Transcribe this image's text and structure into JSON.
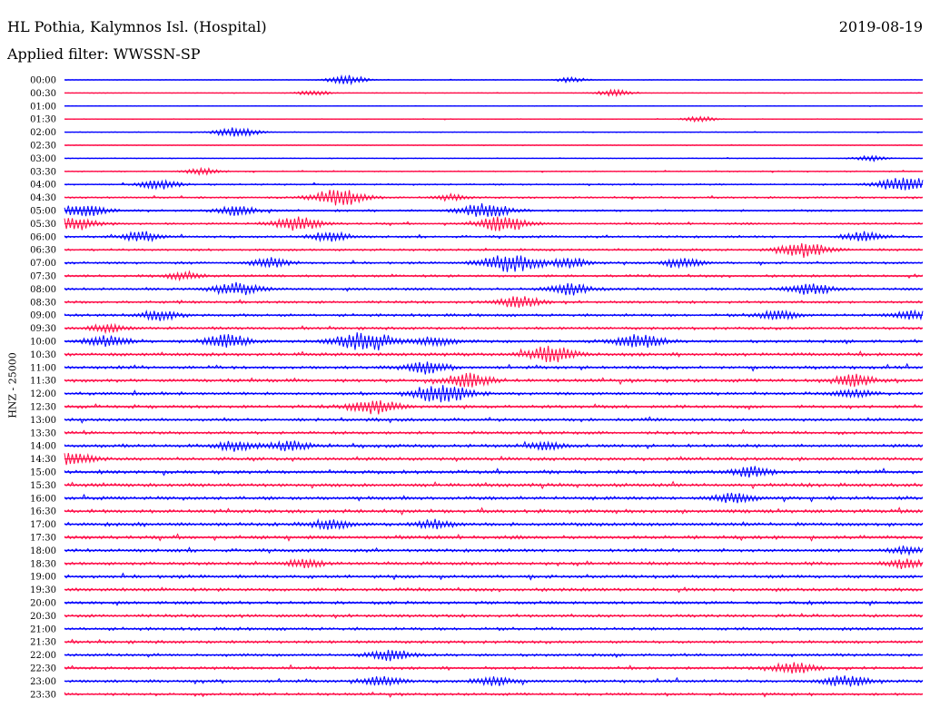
{
  "header": {
    "title": "HL Pothia, Kalymnos Isl. (Hospital)",
    "date": "2019-08-19",
    "filter": "Applied filter: WWSSN-SP"
  },
  "axis": {
    "ylabel": "HNZ - 25000"
  },
  "chart_data": {
    "type": "line",
    "ylabel": "HNZ - 25000",
    "row_labels": [
      "00:00",
      "00:30",
      "01:00",
      "01:30",
      "02:00",
      "02:30",
      "03:00",
      "03:30",
      "04:00",
      "04:30",
      "05:00",
      "05:30",
      "06:00",
      "06:30",
      "07:00",
      "07:30",
      "08:00",
      "08:30",
      "09:00",
      "09:30",
      "10:00",
      "10:30",
      "11:00",
      "11:30",
      "12:00",
      "12:30",
      "13:00",
      "13:30",
      "14:00",
      "14:30",
      "15:00",
      "15:30",
      "16:00",
      "16:30",
      "17:00",
      "17:30",
      "18:00",
      "18:30",
      "19:00",
      "19:30",
      "20:00",
      "20:30",
      "21:00",
      "21:30",
      "22:00",
      "22:30",
      "23:00",
      "23:30"
    ],
    "colors": [
      "#0000ff",
      "#ff0a46"
    ],
    "row_noise": [
      0.05,
      0.05,
      0.05,
      0.06,
      0.06,
      0.07,
      0.07,
      0.1,
      0.14,
      0.16,
      0.18,
      0.18,
      0.2,
      0.2,
      0.2,
      0.22,
      0.22,
      0.22,
      0.24,
      0.24,
      0.26,
      0.28,
      0.26,
      0.28,
      0.26,
      0.26,
      0.26,
      0.26,
      0.28,
      0.28,
      0.3,
      0.3,
      0.3,
      0.3,
      0.3,
      0.3,
      0.28,
      0.28,
      0.28,
      0.28,
      0.26,
      0.26,
      0.26,
      0.26,
      0.24,
      0.24,
      0.24,
      0.22
    ],
    "events": [
      {
        "row": 0,
        "t": 0.33,
        "amp": 1.0
      },
      {
        "row": 0,
        "t": 0.59,
        "amp": 0.6
      },
      {
        "row": 1,
        "t": 0.29,
        "amp": 0.6
      },
      {
        "row": 1,
        "t": 0.64,
        "amp": 0.7
      },
      {
        "row": 3,
        "t": 0.74,
        "amp": 0.6
      },
      {
        "row": 4,
        "t": 0.2,
        "amp": 1.2
      },
      {
        "row": 6,
        "t": 0.94,
        "amp": 0.6
      },
      {
        "row": 7,
        "t": 0.16,
        "amp": 0.7
      },
      {
        "row": 8,
        "t": 0.11,
        "amp": 1.0
      },
      {
        "row": 8,
        "t": 0.98,
        "amp": 1.8
      },
      {
        "row": 9,
        "t": 0.32,
        "amp": 1.8
      },
      {
        "row": 9,
        "t": 0.45,
        "amp": 0.6
      },
      {
        "row": 10,
        "t": 0.02,
        "amp": 1.4
      },
      {
        "row": 10,
        "t": 0.2,
        "amp": 1.0
      },
      {
        "row": 10,
        "t": 0.49,
        "amp": 1.6
      },
      {
        "row": 11,
        "t": 0.01,
        "amp": 1.4
      },
      {
        "row": 11,
        "t": 0.27,
        "amp": 1.5
      },
      {
        "row": 11,
        "t": 0.51,
        "amp": 1.6
      },
      {
        "row": 12,
        "t": 0.09,
        "amp": 1.0
      },
      {
        "row": 12,
        "t": 0.31,
        "amp": 1.0
      },
      {
        "row": 12,
        "t": 0.93,
        "amp": 1.0
      },
      {
        "row": 13,
        "t": 0.86,
        "amp": 1.6
      },
      {
        "row": 14,
        "t": 0.24,
        "amp": 1.0
      },
      {
        "row": 14,
        "t": 0.52,
        "amp": 2.0
      },
      {
        "row": 14,
        "t": 0.59,
        "amp": 1.0
      },
      {
        "row": 14,
        "t": 0.72,
        "amp": 1.0
      },
      {
        "row": 15,
        "t": 0.14,
        "amp": 0.8
      },
      {
        "row": 16,
        "t": 0.2,
        "amp": 1.4
      },
      {
        "row": 16,
        "t": 0.59,
        "amp": 1.2
      },
      {
        "row": 16,
        "t": 0.87,
        "amp": 1.2
      },
      {
        "row": 17,
        "t": 0.53,
        "amp": 1.2
      },
      {
        "row": 18,
        "t": 0.11,
        "amp": 1.0
      },
      {
        "row": 18,
        "t": 0.83,
        "amp": 1.0
      },
      {
        "row": 18,
        "t": 0.99,
        "amp": 1.0
      },
      {
        "row": 19,
        "t": 0.05,
        "amp": 0.8
      },
      {
        "row": 20,
        "t": 0.05,
        "amp": 1.2
      },
      {
        "row": 20,
        "t": 0.19,
        "amp": 1.4
      },
      {
        "row": 20,
        "t": 0.35,
        "amp": 2.0
      },
      {
        "row": 20,
        "t": 0.43,
        "amp": 1.0
      },
      {
        "row": 20,
        "t": 0.67,
        "amp": 1.4
      },
      {
        "row": 21,
        "t": 0.56,
        "amp": 1.2
      },
      {
        "row": 21,
        "t": 0.58,
        "amp": 0.8
      },
      {
        "row": 22,
        "t": 0.42,
        "amp": 1.2
      },
      {
        "row": 23,
        "t": 0.47,
        "amp": 1.4
      },
      {
        "row": 23,
        "t": 0.92,
        "amp": 1.2
      },
      {
        "row": 24,
        "t": 0.44,
        "amp": 2.0
      },
      {
        "row": 24,
        "t": 0.92,
        "amp": 0.8
      },
      {
        "row": 25,
        "t": 0.36,
        "amp": 1.5
      },
      {
        "row": 28,
        "t": 0.2,
        "amp": 1.0
      },
      {
        "row": 28,
        "t": 0.26,
        "amp": 1.0
      },
      {
        "row": 28,
        "t": 0.56,
        "amp": 0.8
      },
      {
        "row": 29,
        "t": 0.01,
        "amp": 1.2
      },
      {
        "row": 30,
        "t": 0.8,
        "amp": 1.0
      },
      {
        "row": 32,
        "t": 0.78,
        "amp": 1.0
      },
      {
        "row": 34,
        "t": 0.31,
        "amp": 1.0
      },
      {
        "row": 34,
        "t": 0.43,
        "amp": 0.9
      },
      {
        "row": 36,
        "t": 0.98,
        "amp": 0.7
      },
      {
        "row": 37,
        "t": 0.28,
        "amp": 0.8
      },
      {
        "row": 37,
        "t": 0.98,
        "amp": 0.9
      },
      {
        "row": 44,
        "t": 0.38,
        "amp": 1.1
      },
      {
        "row": 45,
        "t": 0.85,
        "amp": 1.2
      },
      {
        "row": 46,
        "t": 0.37,
        "amp": 1.0
      },
      {
        "row": 46,
        "t": 0.5,
        "amp": 1.0
      },
      {
        "row": 46,
        "t": 0.91,
        "amp": 1.2
      }
    ]
  }
}
